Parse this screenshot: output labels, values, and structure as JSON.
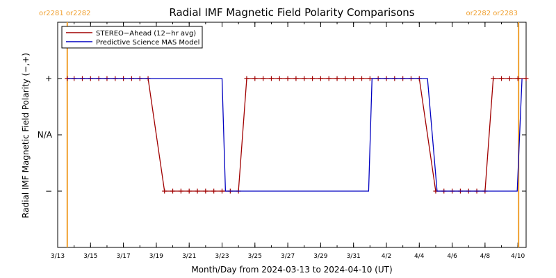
{
  "chart_data": {
    "type": "line",
    "title": "Radial IMF Magnetic Field Polarity Comparisons",
    "xlabel": "Month/Day from 2024-03-13 to 2024-04-10 (UT)",
    "ylabel": "Radial IMF Magnetic Field Polarity (−,+)",
    "x_range": [
      "2024-03-13",
      "2024-04-10T12:00"
    ],
    "x_ticks": [
      {
        "date": "2024-03-13",
        "label": "3/13"
      },
      {
        "date": "2024-03-15",
        "label": "3/15"
      },
      {
        "date": "2024-03-17",
        "label": "3/17"
      },
      {
        "date": "2024-03-19",
        "label": "3/19"
      },
      {
        "date": "2024-03-21",
        "label": "3/21"
      },
      {
        "date": "2024-03-23",
        "label": "3/23"
      },
      {
        "date": "2024-03-25",
        "label": "3/25"
      },
      {
        "date": "2024-03-27",
        "label": "3/27"
      },
      {
        "date": "2024-03-29",
        "label": "3/29"
      },
      {
        "date": "2024-03-31",
        "label": "3/31"
      },
      {
        "date": "2024-04-02",
        "label": "4/2"
      },
      {
        "date": "2024-04-04",
        "label": "4/4"
      },
      {
        "date": "2024-04-06",
        "label": "4/6"
      },
      {
        "date": "2024-04-08",
        "label": "4/8"
      },
      {
        "date": "2024-04-10",
        "label": "4/10"
      }
    ],
    "y_levels": [
      {
        "value": 1,
        "label": "+"
      },
      {
        "value": 0,
        "label": "N/A"
      },
      {
        "value": -1,
        "label": "−"
      }
    ],
    "ylim": [
      -2,
      2
    ],
    "legend_position": "top-left",
    "carrington_markers": [
      {
        "date": "2024-03-13T14:00",
        "label_left": "or2281",
        "label_right": "or2282",
        "side": "left",
        "color": "#f0a030"
      },
      {
        "date": "2024-04-10T01:00",
        "label_left": "or2282",
        "label_right": "or2283",
        "side": "right",
        "color": "#f0a030"
      }
    ],
    "series": [
      {
        "name": "STEREO−Ahead (12−hr avg)",
        "color": "#a00000",
        "marker": "+",
        "points": [
          [
            "2024-03-13T14:00",
            1
          ],
          [
            "2024-03-14T00:00",
            1
          ],
          [
            "2024-03-14T12:00",
            1
          ],
          [
            "2024-03-15T00:00",
            1
          ],
          [
            "2024-03-15T12:00",
            1
          ],
          [
            "2024-03-16T00:00",
            1
          ],
          [
            "2024-03-16T12:00",
            1
          ],
          [
            "2024-03-17T00:00",
            1
          ],
          [
            "2024-03-17T12:00",
            1
          ],
          [
            "2024-03-18T00:00",
            1
          ],
          [
            "2024-03-18T12:00",
            1
          ],
          [
            "2024-03-19T12:00",
            -1
          ],
          [
            "2024-03-20T00:00",
            -1
          ],
          [
            "2024-03-20T12:00",
            -1
          ],
          [
            "2024-03-21T00:00",
            -1
          ],
          [
            "2024-03-21T12:00",
            -1
          ],
          [
            "2024-03-22T00:00",
            -1
          ],
          [
            "2024-03-22T12:00",
            -1
          ],
          [
            "2024-03-23T00:00",
            -1
          ],
          [
            "2024-03-23T12:00",
            -1
          ],
          [
            "2024-03-24T00:00",
            -1
          ],
          [
            "2024-03-24T12:00",
            1
          ],
          [
            "2024-03-25T00:00",
            1
          ],
          [
            "2024-03-25T12:00",
            1
          ],
          [
            "2024-03-26T00:00",
            1
          ],
          [
            "2024-03-26T12:00",
            1
          ],
          [
            "2024-03-27T00:00",
            1
          ],
          [
            "2024-03-27T12:00",
            1
          ],
          [
            "2024-03-28T00:00",
            1
          ],
          [
            "2024-03-28T12:00",
            1
          ],
          [
            "2024-03-29T00:00",
            1
          ],
          [
            "2024-03-29T12:00",
            1
          ],
          [
            "2024-03-30T00:00",
            1
          ],
          [
            "2024-03-30T12:00",
            1
          ],
          [
            "2024-03-31T00:00",
            1
          ],
          [
            "2024-03-31T12:00",
            1
          ],
          [
            "2024-04-01T00:00",
            1
          ],
          [
            "2024-04-01T12:00",
            1
          ],
          [
            "2024-04-02T00:00",
            1
          ],
          [
            "2024-04-02T12:00",
            1
          ],
          [
            "2024-04-03T00:00",
            1
          ],
          [
            "2024-04-03T12:00",
            1
          ],
          [
            "2024-04-04T00:00",
            1
          ],
          [
            "2024-04-05T00:00",
            -1
          ],
          [
            "2024-04-05T12:00",
            -1
          ],
          [
            "2024-04-06T00:00",
            -1
          ],
          [
            "2024-04-06T12:00",
            -1
          ],
          [
            "2024-04-07T00:00",
            -1
          ],
          [
            "2024-04-07T12:00",
            -1
          ],
          [
            "2024-04-08T00:00",
            -1
          ],
          [
            "2024-04-08T12:00",
            1
          ],
          [
            "2024-04-09T00:00",
            1
          ],
          [
            "2024-04-09T12:00",
            1
          ],
          [
            "2024-04-10T00:00",
            1
          ],
          [
            "2024-04-10T12:00",
            1
          ]
        ]
      },
      {
        "name": "Predictive Science MAS Model",
        "color": "#0000c0",
        "marker": "none",
        "points": [
          [
            "2024-03-13T14:00",
            1
          ],
          [
            "2024-03-23T00:00",
            1
          ],
          [
            "2024-03-23T05:00",
            -1
          ],
          [
            "2024-03-31T22:00",
            -1
          ],
          [
            "2024-04-01T03:00",
            1
          ],
          [
            "2024-04-04T12:00",
            1
          ],
          [
            "2024-04-05T02:00",
            -1
          ],
          [
            "2024-04-09T23:00",
            -1
          ],
          [
            "2024-04-10T06:00",
            1
          ]
        ]
      }
    ]
  }
}
